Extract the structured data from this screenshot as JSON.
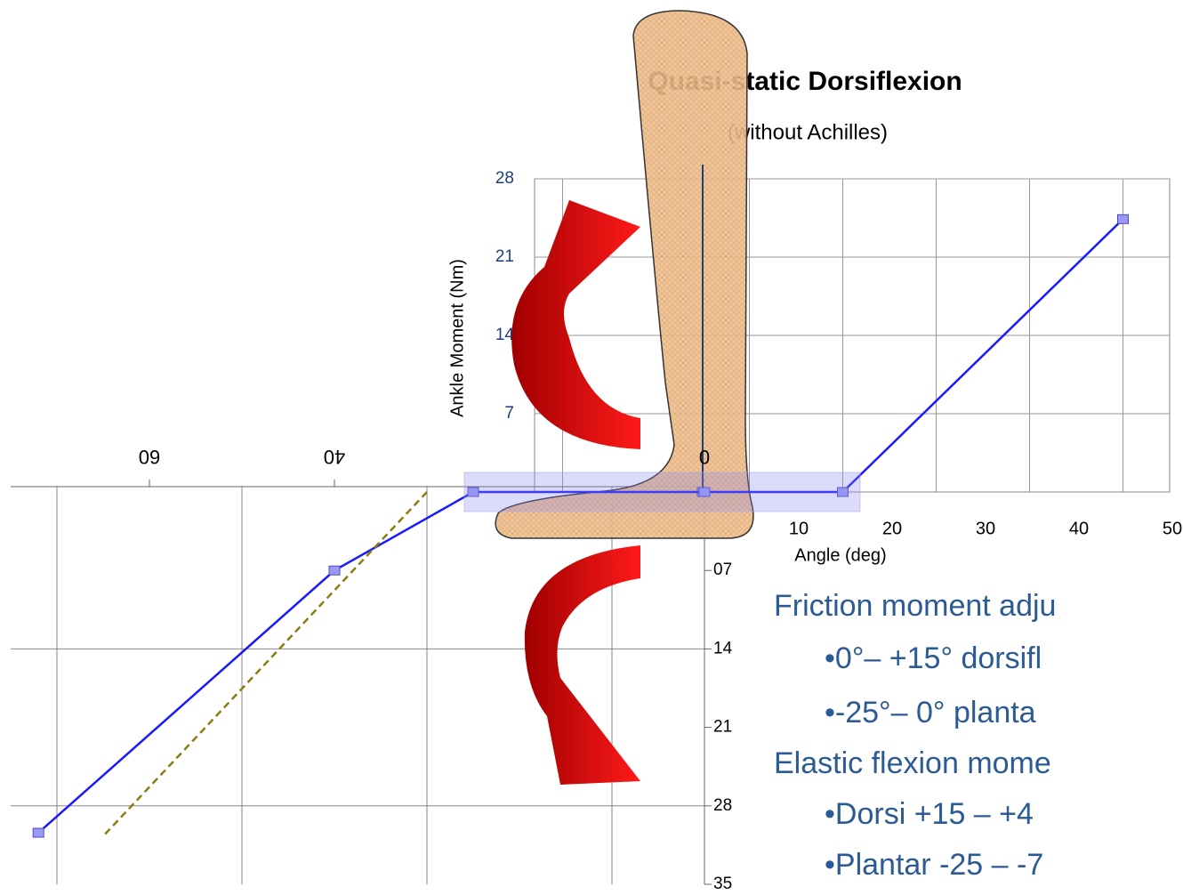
{
  "chart_data": [
    {
      "type": "line",
      "title": "Quasi-static Dorsiflexion",
      "subtitle": "(without Achilles)",
      "x_label": "Angle (deg)",
      "y_label": "Ankle Moment (Nm)",
      "x": [
        0,
        15,
        45
      ],
      "series": [
        {
          "color": "#1a1aff",
          "values": [
            0,
            0,
            24.4
          ]
        }
      ],
      "xlim": [
        -18,
        50
      ],
      "ylim": [
        0,
        28
      ],
      "xticks": [
        10,
        20,
        30,
        40,
        50
      ],
      "yticks": [
        7,
        14,
        21,
        28
      ],
      "xgrid": [
        -15,
        5,
        15,
        25,
        35,
        45
      ],
      "grid": true
    },
    {
      "type": "line",
      "x_reversed": true,
      "y_reversed": true,
      "x": [
        0,
        25,
        40,
        72
      ],
      "series": [
        {
          "color": "#1a1aff",
          "values": [
            0,
            0,
            7,
            30.4
          ]
        },
        {
          "color": "#8b7d10",
          "dash": true,
          "x": [
            30,
            65
          ],
          "values": [
            0,
            30.7
          ]
        }
      ],
      "xlim": [
        0,
        75
      ],
      "ylim": [
        0,
        35
      ],
      "xticks": [
        60,
        40,
        0
      ],
      "yticks": [
        {
          "value": 7,
          "label": "07"
        },
        14,
        21,
        28,
        35
      ],
      "xgrid": [
        10,
        30,
        50,
        70
      ],
      "ygrid": [
        14,
        28
      ]
    }
  ],
  "text_block": [
    "Friction moment adju",
    "•0°– +15° dorsifl",
    "•-25°– 0° planta",
    "Elastic flexion mome",
    "•Dorsi +15 – +4",
    "•Plantar -25 – -7"
  ]
}
